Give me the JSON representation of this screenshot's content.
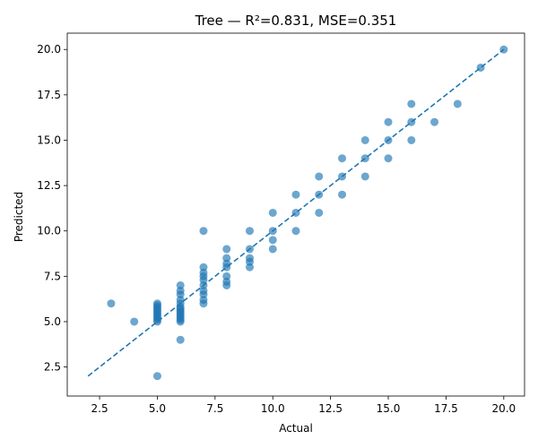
{
  "chart_data": {
    "type": "scatter",
    "title": "Tree — R²=0.831, MSE=0.351",
    "xlabel": "Actual",
    "ylabel": "Predicted",
    "xlim": [
      1.1,
      20.9
    ],
    "ylim": [
      0.9,
      20.9
    ],
    "xticks": [
      2.5,
      5.0,
      7.5,
      10.0,
      12.5,
      15.0,
      17.5,
      20.0
    ],
    "yticks": [
      2.5,
      5.0,
      7.5,
      10.0,
      12.5,
      15.0,
      17.5,
      20.0
    ],
    "xtick_labels": [
      "2.5",
      "5.0",
      "7.5",
      "10.0",
      "12.5",
      "15.0",
      "17.5",
      "20.0"
    ],
    "ytick_labels": [
      "2.5",
      "5.0",
      "7.5",
      "10.0",
      "12.5",
      "15.0",
      "17.5",
      "20.0"
    ],
    "grid": false,
    "point_color": "#1f77b4",
    "point_alpha": 0.65,
    "reference_line": {
      "from": [
        2,
        2
      ],
      "to": [
        20,
        20
      ],
      "style": "dashed",
      "color": "#1f77b4"
    },
    "points": [
      [
        3,
        6
      ],
      [
        4,
        5
      ],
      [
        5,
        2
      ],
      [
        5,
        5.0
      ],
      [
        5,
        5.1
      ],
      [
        5,
        5.2
      ],
      [
        5,
        5.3
      ],
      [
        5,
        5.4
      ],
      [
        5,
        5.5
      ],
      [
        5,
        5.6
      ],
      [
        5,
        5.7
      ],
      [
        5,
        5.8
      ],
      [
        5,
        5.9
      ],
      [
        5,
        6.0
      ],
      [
        6,
        4
      ],
      [
        6,
        5.0
      ],
      [
        6,
        5.1
      ],
      [
        6,
        5.2
      ],
      [
        6,
        5.3
      ],
      [
        6,
        5.4
      ],
      [
        6,
        5.5
      ],
      [
        6,
        5.6
      ],
      [
        6,
        5.7
      ],
      [
        6,
        5.8
      ],
      [
        6,
        6.0
      ],
      [
        6,
        6.2
      ],
      [
        6,
        6.5
      ],
      [
        6,
        6.7
      ],
      [
        6,
        7.0
      ],
      [
        7,
        6.0
      ],
      [
        7,
        6.2
      ],
      [
        7,
        6.5
      ],
      [
        7,
        6.7
      ],
      [
        7,
        7.0
      ],
      [
        7,
        7.3
      ],
      [
        7,
        7.5
      ],
      [
        7,
        7.7
      ],
      [
        7,
        8.0
      ],
      [
        7,
        10
      ],
      [
        8,
        7.0
      ],
      [
        8,
        7.2
      ],
      [
        8,
        7.5
      ],
      [
        8,
        8.0
      ],
      [
        8,
        8.2
      ],
      [
        8,
        8.5
      ],
      [
        8,
        9.0
      ],
      [
        9,
        8.0
      ],
      [
        9,
        8.3
      ],
      [
        9,
        8.5
      ],
      [
        9,
        9.0
      ],
      [
        9,
        10.0
      ],
      [
        10,
        9.0
      ],
      [
        10,
        9.5
      ],
      [
        10,
        10.0
      ],
      [
        10,
        11.0
      ],
      [
        11,
        10.0
      ],
      [
        11,
        11.0
      ],
      [
        11,
        12.0
      ],
      [
        12,
        11.0
      ],
      [
        12,
        12.0
      ],
      [
        12,
        13.0
      ],
      [
        13,
        12.0
      ],
      [
        13,
        13.0
      ],
      [
        13,
        14.0
      ],
      [
        14,
        13.0
      ],
      [
        14,
        14.0
      ],
      [
        14,
        15.0
      ],
      [
        15,
        14.0
      ],
      [
        15,
        15.0
      ],
      [
        15,
        16.0
      ],
      [
        16,
        15.0
      ],
      [
        16,
        16.0
      ],
      [
        16,
        17.0
      ],
      [
        17,
        16.0
      ],
      [
        18,
        17.0
      ],
      [
        19,
        19.0
      ],
      [
        20,
        20.0
      ]
    ]
  }
}
